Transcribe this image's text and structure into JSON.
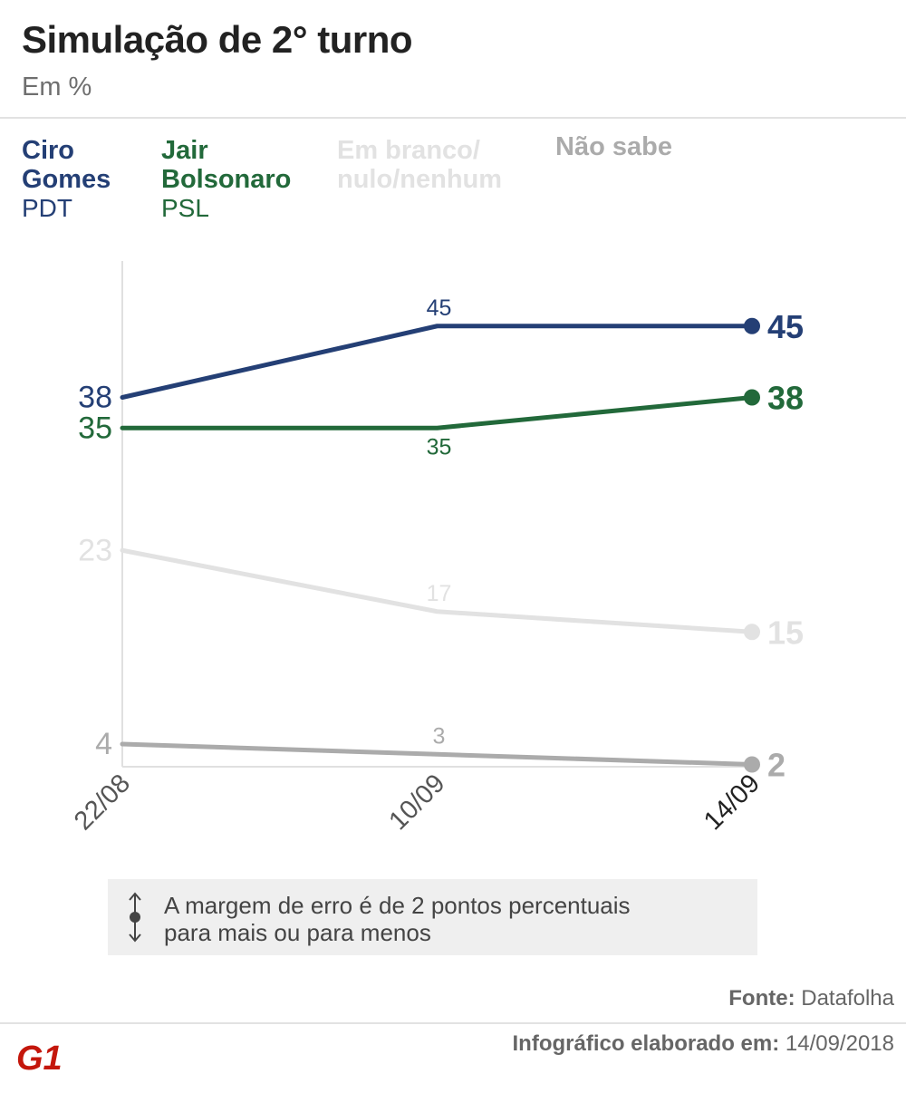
{
  "header": {
    "title": "Simulação de 2° turno",
    "subtitle": "Em %"
  },
  "legend": [
    {
      "name": "Ciro\nGomes",
      "party": "PDT",
      "color": "#243f75"
    },
    {
      "name": "Jair\nBolsonaro",
      "party": "PSL",
      "color": "#22693a"
    },
    {
      "name": "Em branco/\nnulo/nenhum",
      "party": "",
      "color": "#e2e2e2"
    },
    {
      "name": "Não sabe",
      "party": "",
      "color": "#ababab"
    }
  ],
  "chart_data": {
    "type": "line",
    "x": [
      "22/08",
      "10/09",
      "14/09"
    ],
    "ylim": [
      0,
      50
    ],
    "grid": false,
    "series": [
      {
        "name": "Ciro Gomes",
        "values": [
          38,
          45,
          45
        ],
        "color": "#243f75"
      },
      {
        "name": "Jair Bolsonaro",
        "values": [
          35,
          35,
          38
        ],
        "color": "#22693a"
      },
      {
        "name": "Em branco/nulo/nenhum",
        "values": [
          23,
          17,
          15
        ],
        "color": "#e2e2e2"
      },
      {
        "name": "Não sabe",
        "values": [
          4,
          3,
          2
        ],
        "color": "#ababab"
      }
    ]
  },
  "note": {
    "text": "A margem de erro é de 2 pontos percentuais\npara mais ou para menos"
  },
  "source": {
    "label": "Fonte:",
    "value": "Datafolha"
  },
  "footer": {
    "label": "Infográfico elaborado em:",
    "value": "14/09/2018"
  },
  "logo": {
    "text": "G1",
    "color": "#c4170c"
  }
}
